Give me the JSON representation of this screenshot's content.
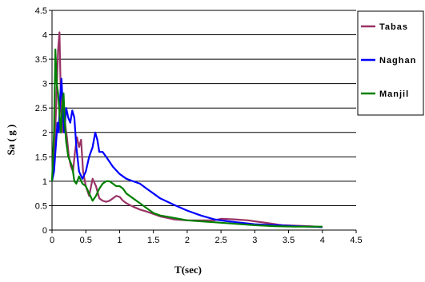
{
  "chart_data": {
    "type": "line",
    "title": "",
    "xlabel": "T(sec)",
    "ylabel": "Sa ( g )",
    "xlim": [
      0,
      4.5
    ],
    "ylim": [
      0,
      4.5
    ],
    "x_ticks": [
      "0",
      "0.5",
      "1",
      "1.5",
      "2",
      "2.5",
      "3",
      "3.5",
      "4",
      "4.5"
    ],
    "y_ticks": [
      "0",
      "0.5",
      "1",
      "1.5",
      "2",
      "2.5",
      "3",
      "3.5",
      "4",
      "4.5"
    ],
    "grid": "horizontal",
    "legend_position": "right",
    "series": [
      {
        "name": "Tabas",
        "color": "#993366",
        "points": [
          [
            0.0,
            1.0
          ],
          [
            0.03,
            1.6
          ],
          [
            0.05,
            2.1
          ],
          [
            0.07,
            2.9
          ],
          [
            0.09,
            3.7
          ],
          [
            0.11,
            4.05
          ],
          [
            0.13,
            2.7
          ],
          [
            0.15,
            2.0
          ],
          [
            0.18,
            2.4
          ],
          [
            0.2,
            2.1
          ],
          [
            0.22,
            1.9
          ],
          [
            0.25,
            1.5
          ],
          [
            0.28,
            1.3
          ],
          [
            0.31,
            1.2
          ],
          [
            0.34,
            1.6
          ],
          [
            0.37,
            1.9
          ],
          [
            0.4,
            1.7
          ],
          [
            0.43,
            1.85
          ],
          [
            0.46,
            1.2
          ],
          [
            0.5,
            0.9
          ],
          [
            0.55,
            0.7
          ],
          [
            0.6,
            1.05
          ],
          [
            0.65,
            0.9
          ],
          [
            0.7,
            0.65
          ],
          [
            0.75,
            0.6
          ],
          [
            0.8,
            0.58
          ],
          [
            0.85,
            0.6
          ],
          [
            0.9,
            0.65
          ],
          [
            0.95,
            0.7
          ],
          [
            1.0,
            0.68
          ],
          [
            1.05,
            0.6
          ],
          [
            1.1,
            0.55
          ],
          [
            1.2,
            0.48
          ],
          [
            1.3,
            0.42
          ],
          [
            1.4,
            0.38
          ],
          [
            1.5,
            0.33
          ],
          [
            1.6,
            0.28
          ],
          [
            1.7,
            0.25
          ],
          [
            1.8,
            0.22
          ],
          [
            2.0,
            0.2
          ],
          [
            2.2,
            0.2
          ],
          [
            2.4,
            0.2
          ],
          [
            2.5,
            0.23
          ],
          [
            2.7,
            0.22
          ],
          [
            2.9,
            0.2
          ],
          [
            3.0,
            0.18
          ],
          [
            3.2,
            0.14
          ],
          [
            3.4,
            0.1
          ],
          [
            3.6,
            0.09
          ],
          [
            3.8,
            0.08
          ],
          [
            4.0,
            0.06
          ]
        ]
      },
      {
        "name": "Naghan",
        "color": "#0000ff",
        "points": [
          [
            0.0,
            1.0
          ],
          [
            0.03,
            1.2
          ],
          [
            0.06,
            1.8
          ],
          [
            0.08,
            2.2
          ],
          [
            0.1,
            2.0
          ],
          [
            0.12,
            2.7
          ],
          [
            0.14,
            3.1
          ],
          [
            0.16,
            2.5
          ],
          [
            0.18,
            2.0
          ],
          [
            0.21,
            2.5
          ],
          [
            0.24,
            2.3
          ],
          [
            0.27,
            2.2
          ],
          [
            0.3,
            2.45
          ],
          [
            0.33,
            2.3
          ],
          [
            0.36,
            1.7
          ],
          [
            0.4,
            1.2
          ],
          [
            0.45,
            1.05
          ],
          [
            0.5,
            1.2
          ],
          [
            0.55,
            1.5
          ],
          [
            0.6,
            1.7
          ],
          [
            0.64,
            2.0
          ],
          [
            0.67,
            1.85
          ],
          [
            0.7,
            1.6
          ],
          [
            0.75,
            1.6
          ],
          [
            0.8,
            1.5
          ],
          [
            0.9,
            1.3
          ],
          [
            1.0,
            1.15
          ],
          [
            1.1,
            1.05
          ],
          [
            1.2,
            1.0
          ],
          [
            1.3,
            0.95
          ],
          [
            1.4,
            0.85
          ],
          [
            1.5,
            0.75
          ],
          [
            1.6,
            0.65
          ],
          [
            1.8,
            0.52
          ],
          [
            2.0,
            0.4
          ],
          [
            2.2,
            0.3
          ],
          [
            2.4,
            0.22
          ],
          [
            2.6,
            0.18
          ],
          [
            2.8,
            0.15
          ],
          [
            3.0,
            0.12
          ],
          [
            3.3,
            0.1
          ],
          [
            3.6,
            0.08
          ],
          [
            4.0,
            0.06
          ]
        ]
      },
      {
        "name": "Manjil",
        "color": "#008000",
        "points": [
          [
            0.0,
            1.0
          ],
          [
            0.03,
            2.0
          ],
          [
            0.05,
            3.7
          ],
          [
            0.07,
            3.0
          ],
          [
            0.09,
            2.8
          ],
          [
            0.11,
            2.4
          ],
          [
            0.13,
            2.0
          ],
          [
            0.15,
            2.5
          ],
          [
            0.17,
            2.8
          ],
          [
            0.19,
            2.2
          ],
          [
            0.21,
            1.8
          ],
          [
            0.24,
            1.5
          ],
          [
            0.27,
            1.4
          ],
          [
            0.3,
            1.3
          ],
          [
            0.33,
            1.0
          ],
          [
            0.36,
            0.95
          ],
          [
            0.4,
            1.1
          ],
          [
            0.45,
            0.95
          ],
          [
            0.5,
            0.9
          ],
          [
            0.55,
            0.75
          ],
          [
            0.6,
            0.6
          ],
          [
            0.65,
            0.7
          ],
          [
            0.7,
            0.85
          ],
          [
            0.75,
            0.95
          ],
          [
            0.8,
            1.0
          ],
          [
            0.85,
            1.0
          ],
          [
            0.9,
            0.95
          ],
          [
            0.95,
            0.9
          ],
          [
            1.0,
            0.9
          ],
          [
            1.05,
            0.85
          ],
          [
            1.1,
            0.75
          ],
          [
            1.2,
            0.65
          ],
          [
            1.3,
            0.55
          ],
          [
            1.4,
            0.45
          ],
          [
            1.5,
            0.35
          ],
          [
            1.6,
            0.3
          ],
          [
            1.8,
            0.25
          ],
          [
            2.0,
            0.2
          ],
          [
            2.2,
            0.18
          ],
          [
            2.5,
            0.15
          ],
          [
            2.8,
            0.12
          ],
          [
            3.0,
            0.1
          ],
          [
            3.3,
            0.08
          ],
          [
            3.6,
            0.07
          ],
          [
            4.0,
            0.07
          ]
        ]
      }
    ]
  }
}
